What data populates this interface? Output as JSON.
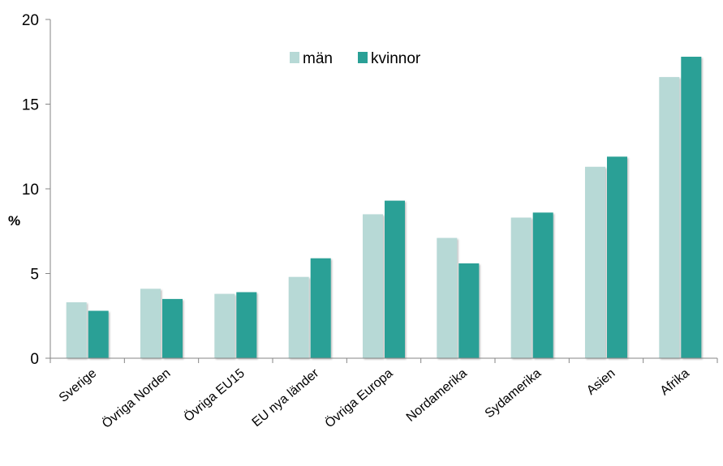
{
  "chart_data": {
    "type": "bar",
    "title": "",
    "xlabel": "",
    "ylabel": "%",
    "ylim": [
      0,
      20
    ],
    "yticks": [
      0,
      5,
      10,
      15,
      20
    ],
    "grid": false,
    "legend_position": "top-center",
    "categories": [
      "Sverige",
      "Övriga Norden",
      "Övriga EU15",
      "EU nya länder",
      "Övriga Europa",
      "Nordamerika",
      "Sydamerika",
      "Asien",
      "Afrika"
    ],
    "series": [
      {
        "name": "män",
        "color": "#b7d9d6",
        "values": [
          3.3,
          4.1,
          3.8,
          4.8,
          8.5,
          7.1,
          8.3,
          11.3,
          16.6
        ]
      },
      {
        "name": "kvinnor",
        "color": "#2aa096",
        "values": [
          2.8,
          3.5,
          3.9,
          5.9,
          9.3,
          5.6,
          8.6,
          11.9,
          17.8
        ]
      }
    ]
  }
}
